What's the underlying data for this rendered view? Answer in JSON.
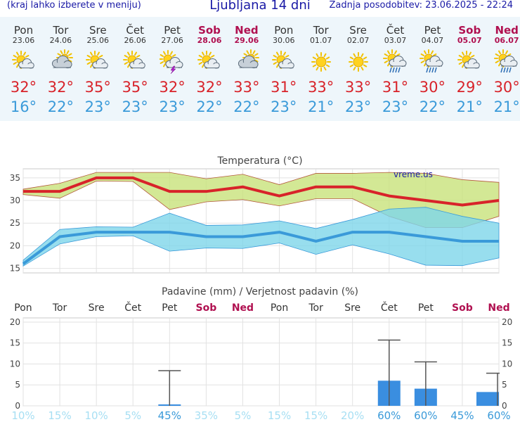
{
  "header": {
    "menu_hint": "(kraj lahko izberete v meniju)",
    "title": "Ljubljana 14 dni",
    "updated": "Zadnja posodobitev: 23.06.2025 - 22:24"
  },
  "days": [
    {
      "name": "Pon",
      "date": "23.06",
      "icon": "sun-cloud-icon",
      "tmax": "32°",
      "tmin": "16°",
      "weekend": false
    },
    {
      "name": "Tor",
      "date": "24.06",
      "icon": "cloudy-sun-icon",
      "tmax": "32°",
      "tmin": "22°",
      "weekend": false
    },
    {
      "name": "Sre",
      "date": "25.06",
      "icon": "sun-cloud-icon",
      "tmax": "35°",
      "tmin": "23°",
      "weekend": false
    },
    {
      "name": "Čet",
      "date": "26.06",
      "icon": "sun-cloud-icon",
      "tmax": "35°",
      "tmin": "23°",
      "weekend": false
    },
    {
      "name": "Pet",
      "date": "27.06",
      "icon": "thunderstorm-icon",
      "tmax": "32°",
      "tmin": "23°",
      "weekend": false
    },
    {
      "name": "Sob",
      "date": "28.06",
      "icon": "sun-cloud-icon",
      "tmax": "32°",
      "tmin": "22°",
      "weekend": true
    },
    {
      "name": "Ned",
      "date": "29.06",
      "icon": "cloudy-sun-icon",
      "tmax": "33°",
      "tmin": "22°",
      "weekend": true
    },
    {
      "name": "Pon",
      "date": "30.06",
      "icon": "sun-cloud-icon",
      "tmax": "31°",
      "tmin": "23°",
      "weekend": false
    },
    {
      "name": "Tor",
      "date": "01.07",
      "icon": "sun-icon",
      "tmax": "33°",
      "tmin": "21°",
      "weekend": false
    },
    {
      "name": "Sre",
      "date": "02.07",
      "icon": "sun-icon",
      "tmax": "33°",
      "tmin": "23°",
      "weekend": false
    },
    {
      "name": "Čet",
      "date": "03.07",
      "icon": "sun-rain-icon",
      "tmax": "31°",
      "tmin": "23°",
      "weekend": false
    },
    {
      "name": "Pet",
      "date": "04.07",
      "icon": "sun-rain-icon",
      "tmax": "30°",
      "tmin": "22°",
      "weekend": false
    },
    {
      "name": "Sob",
      "date": "05.07",
      "icon": "sun-cloud-icon",
      "tmax": "29°",
      "tmin": "21°",
      "weekend": true
    },
    {
      "name": "Ned",
      "date": "06.07",
      "icon": "sun-rain-icon",
      "tmax": "30°",
      "tmin": "21°",
      "weekend": true
    }
  ],
  "colors": {
    "max_line": "#d8232a",
    "min_line": "#3a9ad9",
    "max_band": "#c8e27a",
    "min_band": "#7ed6ea",
    "overlap": "#8fd27a",
    "bar": "#3a8ee0",
    "weekend": "#b01050",
    "prob": "#3a9ad9",
    "prob_light": "#a7dff3"
  },
  "chart_data": [
    {
      "type": "line",
      "title": "Temperatura (°C)",
      "watermark": "vreme.us",
      "ylim": [
        14,
        37
      ],
      "yticks": [
        15,
        20,
        25,
        30,
        35
      ],
      "x": [
        "23.06",
        "24.06",
        "25.06",
        "26.06",
        "27.06",
        "28.06",
        "29.06",
        "30.06",
        "01.07",
        "02.07",
        "03.07",
        "04.07",
        "05.07",
        "06.07"
      ],
      "series": [
        {
          "key": "tmax",
          "values": [
            32,
            32,
            35,
            35,
            32,
            32,
            33,
            31,
            33,
            33,
            31,
            30,
            29,
            30
          ]
        },
        {
          "key": "tmax_high",
          "values": [
            32.5,
            33.8,
            36.2,
            36.2,
            36.2,
            34.8,
            35.8,
            33.5,
            36,
            36,
            36.2,
            36,
            34.6,
            34
          ]
        },
        {
          "key": "tmax_low",
          "values": [
            31.3,
            30.5,
            34.3,
            34.2,
            28,
            29.7,
            30.2,
            28.8,
            30.4,
            30.4,
            26.5,
            24,
            24,
            26.5
          ]
        },
        {
          "key": "tmin",
          "values": [
            16,
            22,
            23,
            23,
            23,
            22,
            22,
            23,
            21,
            23,
            23,
            22,
            21,
            21
          ]
        },
        {
          "key": "tmin_high",
          "values": [
            16.8,
            23.6,
            24.2,
            24.1,
            27.2,
            24.5,
            24.6,
            25.5,
            23.8,
            25.8,
            28.1,
            28.5,
            26.5,
            25
          ]
        },
        {
          "key": "tmin_low",
          "values": [
            15.5,
            20.4,
            22,
            22.2,
            18.8,
            19.5,
            19.4,
            20.6,
            18.1,
            20.2,
            18.2,
            15.7,
            15.6,
            17.3
          ]
        }
      ]
    },
    {
      "type": "bar",
      "title": "Padavine (mm) / Verjetnost padavin (%)",
      "ylim": [
        0,
        21
      ],
      "yticks": [
        0,
        5,
        10,
        15,
        20
      ],
      "categories": [
        "Pon",
        "Tor",
        "Sre",
        "Čet",
        "Pet",
        "Sob",
        "Ned",
        "Pon",
        "Tor",
        "Sre",
        "Čet",
        "Pet",
        "Sob",
        "Ned"
      ],
      "values": [
        0,
        0,
        0,
        0,
        0.2,
        0,
        0,
        0,
        0,
        0,
        6,
        4.1,
        0,
        3.3
      ],
      "error_high": [
        0,
        0,
        0,
        0,
        8.4,
        0,
        0,
        0,
        0,
        0,
        15.7,
        10.5,
        0,
        7.8
      ],
      "probability": [
        "10%",
        "15%",
        "10%",
        "5%",
        "45%",
        "35%",
        "5%",
        "15%",
        "15%",
        "20%",
        "60%",
        "60%",
        "45%",
        "60%"
      ]
    }
  ]
}
